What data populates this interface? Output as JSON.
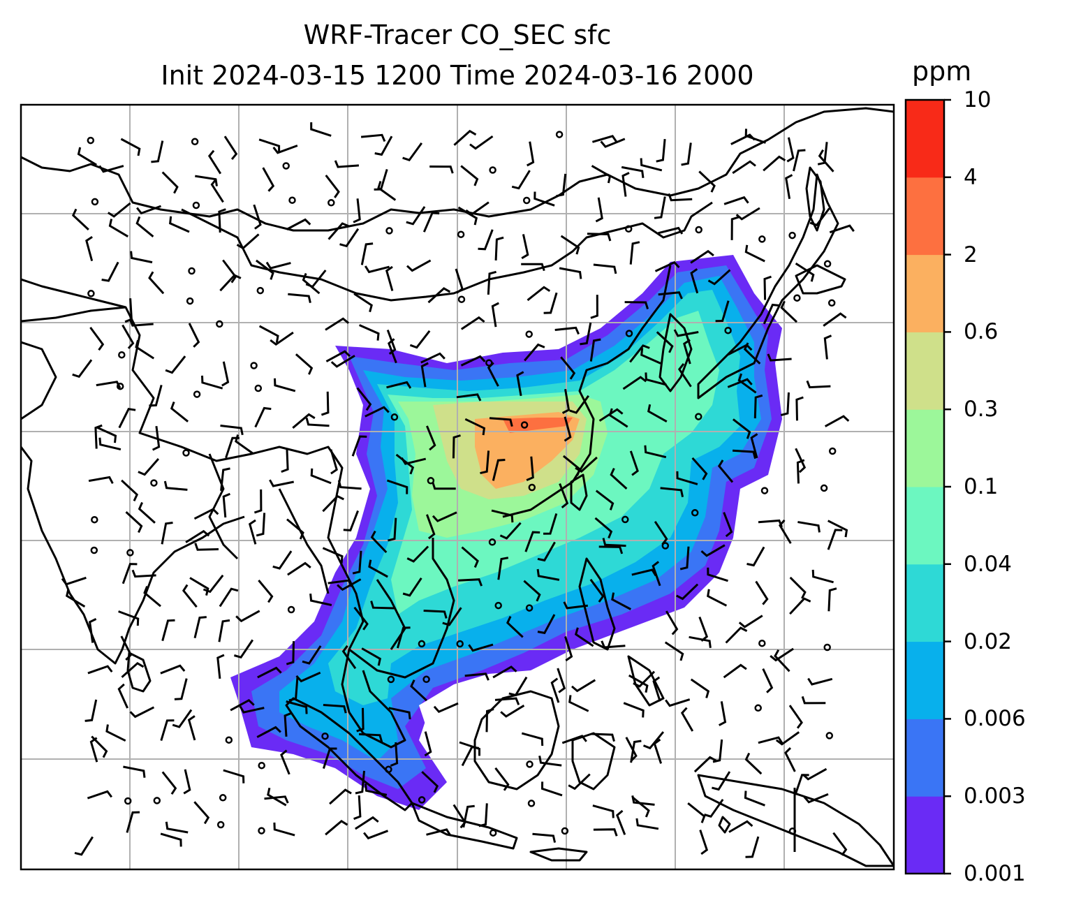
{
  "title": {
    "line1": "WRF-Tracer CO_SEC sfc",
    "line2": "Init 2024-03-15 1200 Time 2024-03-16 2000"
  },
  "colorbar": {
    "unit": "ppm",
    "levels": [
      "0.001",
      "0.003",
      "0.006",
      "0.02",
      "0.04",
      "0.1",
      "0.3",
      "0.6",
      "2",
      "4",
      "10"
    ],
    "colors": [
      "#6a2bf5",
      "#3a75f5",
      "#08b0ec",
      "#2ed9d6",
      "#6cf7c0",
      "#9cf79a",
      "#cfe08a",
      "#fbb060",
      "#fd7040",
      "#f82a18"
    ]
  },
  "map": {
    "land_color": "#ffffff",
    "coastline_color": "#000000",
    "gridline_color": "#b0b0b0",
    "gridlines": true,
    "wind_barbs": true
  }
}
